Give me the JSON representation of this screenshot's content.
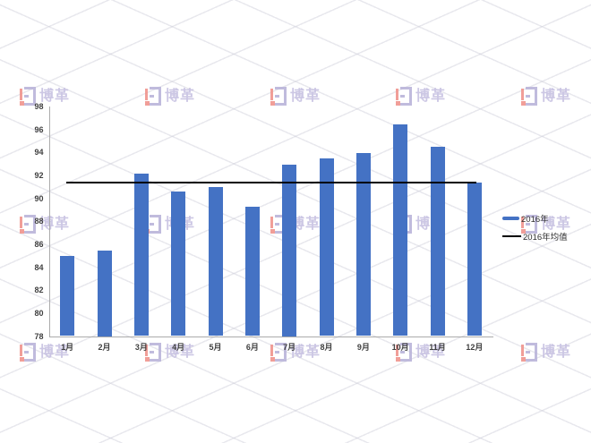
{
  "page": {
    "background": "#ffffff"
  },
  "watermark": {
    "brand_text": "博革",
    "text_color": "#c7c1e2",
    "icon_red": "#f0948d",
    "icon_purple": "#bab4da",
    "lattice_line_color": "rgba(204,204,216,0.45)"
  },
  "chart_data": {
    "type": "bar",
    "title": "",
    "categories": [
      "1月",
      "2月",
      "3月",
      "4月",
      "5月",
      "6月",
      "7月",
      "8月",
      "9月",
      "10月",
      "11月",
      "12月"
    ],
    "series": [
      {
        "name": "2016年",
        "type": "bar",
        "color": "#4472C4",
        "values": [
          85,
          85.5,
          92.2,
          90.6,
          91,
          89.3,
          93,
          93.5,
          94,
          96.5,
          94.5,
          91.4
        ]
      },
      {
        "name": "2016年均值",
        "type": "line",
        "color": "#000000",
        "value": 91.4
      }
    ],
    "xlabel": "",
    "ylabel": "",
    "ylim": [
      78,
      98
    ],
    "ytick_step": 2,
    "yticks": [
      78,
      80,
      82,
      84,
      86,
      88,
      90,
      92,
      94,
      96,
      98
    ],
    "grid": false,
    "legend_position": "right-middle",
    "axis_color": "#ababab",
    "tick_label_color": "#3f3f3f"
  }
}
